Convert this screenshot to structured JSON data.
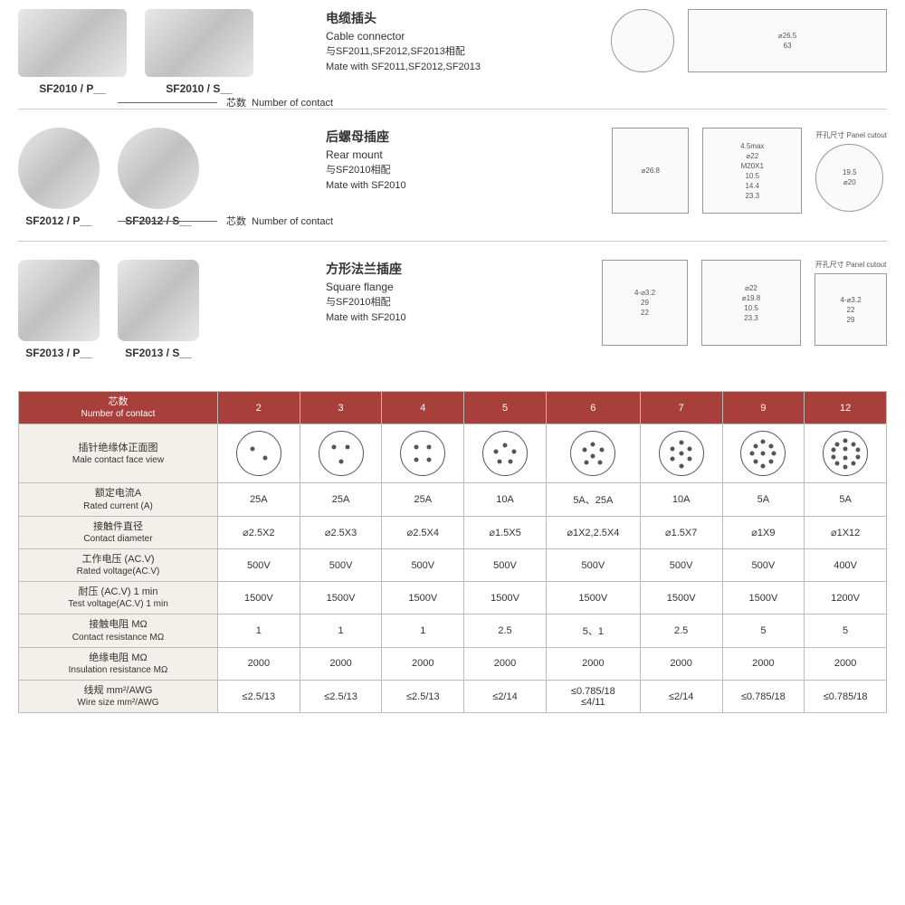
{
  "products": [
    {
      "partP": "SF2010 / P__",
      "partS": "SF2010 / S__",
      "cnTitle": "电缆插头",
      "enTitle": "Cable connector",
      "cnMate": "与SF2011,SF2012,SF2013相配",
      "enMate": "Mate with SF2011,SF2012,SF2013",
      "contactCn": "芯数",
      "contactEn": "Number of contact",
      "drawings": {
        "dim1": "⌀26.5",
        "dim2": "63"
      }
    },
    {
      "partP": "SF2012 / P__",
      "partS": "SF2012 / S__",
      "cnTitle": "后螺母插座",
      "enTitle": "Rear mount",
      "cnMate": "与SF2010相配",
      "enMate": "Mate with SF2010",
      "contactCn": "芯数",
      "contactEn": "Number of contact",
      "drawings": {
        "d1": "⌀26.8",
        "d2": "4.5max",
        "d3": "⌀22",
        "d4": "M20X1",
        "d5": "10.5",
        "d6": "14.4",
        "d7": "23.3",
        "cutoutCn": "开孔尺寸",
        "cutoutEn": "Panel cutout",
        "c1": "19.5",
        "c2": "⌀20"
      }
    },
    {
      "partP": "SF2013 / P__",
      "partS": "SF2013 / S__",
      "cnTitle": "方形法兰插座",
      "enTitle": "Square flange",
      "cnMate": "与SF2010相配",
      "enMate": "Mate with SF2010",
      "contactCn": "芯数",
      "contactEn": "Number of contact",
      "drawings": {
        "d1": "4-⌀3.2",
        "d2": "29",
        "d3": "22",
        "d4": "⌀22",
        "d5": "⌀19.8",
        "d6": "10.5",
        "d7": "23.3",
        "cutoutCn": "开孔尺寸",
        "cutoutEn": "Panel cutout",
        "c1": "4-⌀3.2",
        "c2": "22",
        "c3": "29"
      }
    }
  ],
  "table": {
    "headerLabelCn": "芯数",
    "headerLabelEn": "Number of contact",
    "columns": [
      "2",
      "3",
      "4",
      "5",
      "6",
      "7",
      "9",
      "12"
    ],
    "rows": [
      {
        "cn": "插针绝缘体正面图",
        "en": "Male contact face view",
        "type": "face"
      },
      {
        "cn": "额定电流A",
        "en": "Rated current (A)",
        "vals": [
          "25A",
          "25A",
          "25A",
          "10A",
          "5A、25A",
          "10A",
          "5A",
          "5A"
        ]
      },
      {
        "cn": "接触件直径",
        "en": "Contact diameter",
        "vals": [
          "⌀2.5X2",
          "⌀2.5X3",
          "⌀2.5X4",
          "⌀1.5X5",
          "⌀1X2,2.5X4",
          "⌀1.5X7",
          "⌀1X9",
          "⌀1X12"
        ]
      },
      {
        "cn": "工作电压 (AC.V)",
        "en": "Rated voltage(AC.V)",
        "vals": [
          "500V",
          "500V",
          "500V",
          "500V",
          "500V",
          "500V",
          "500V",
          "400V"
        ]
      },
      {
        "cn": "耐压 (AC.V) 1 min",
        "en": "Test voltage(AC.V) 1 min",
        "vals": [
          "1500V",
          "1500V",
          "1500V",
          "1500V",
          "1500V",
          "1500V",
          "1500V",
          "1200V"
        ]
      },
      {
        "cn": "接触电阻 MΩ",
        "en": "Contact resistance MΩ",
        "vals": [
          "1",
          "1",
          "1",
          "2.5",
          "5、1",
          "2.5",
          "5",
          "5"
        ]
      },
      {
        "cn": "绝缘电阻 MΩ",
        "en": "Insulation resistance MΩ",
        "vals": [
          "2000",
          "2000",
          "2000",
          "2000",
          "2000",
          "2000",
          "2000",
          "2000"
        ]
      },
      {
        "cn": "线规 mm²/AWG",
        "en": "Wire size mm²/AWG",
        "vals": [
          "≤2.5/13",
          "≤2.5/13",
          "≤2.5/13",
          "≤2/14",
          "≤0.785/18\n≤4/11",
          "≤2/14",
          "≤0.785/18",
          "≤0.785/18"
        ]
      }
    ],
    "pinLayouts": {
      "2": [
        [
          35,
          40
        ],
        [
          65,
          60
        ]
      ],
      "3": [
        [
          35,
          35
        ],
        [
          65,
          35
        ],
        [
          50,
          68
        ]
      ],
      "4": [
        [
          35,
          35
        ],
        [
          65,
          35
        ],
        [
          35,
          65
        ],
        [
          65,
          65
        ]
      ],
      "5": [
        [
          50,
          30
        ],
        [
          30,
          45
        ],
        [
          70,
          45
        ],
        [
          38,
          68
        ],
        [
          62,
          68
        ]
      ],
      "6": [
        [
          50,
          28
        ],
        [
          30,
          42
        ],
        [
          70,
          42
        ],
        [
          50,
          55
        ],
        [
          35,
          70
        ],
        [
          65,
          70
        ]
      ],
      "7": [
        [
          50,
          25
        ],
        [
          30,
          40
        ],
        [
          70,
          40
        ],
        [
          50,
          50
        ],
        [
          30,
          62
        ],
        [
          70,
          62
        ],
        [
          50,
          78
        ]
      ],
      "9": [
        [
          50,
          22
        ],
        [
          32,
          32
        ],
        [
          68,
          32
        ],
        [
          25,
          50
        ],
        [
          50,
          50
        ],
        [
          75,
          50
        ],
        [
          32,
          68
        ],
        [
          68,
          68
        ],
        [
          50,
          78
        ]
      ],
      "12": [
        [
          50,
          20
        ],
        [
          32,
          28
        ],
        [
          68,
          28
        ],
        [
          22,
          42
        ],
        [
          50,
          40
        ],
        [
          78,
          42
        ],
        [
          22,
          58
        ],
        [
          50,
          60
        ],
        [
          78,
          58
        ],
        [
          32,
          72
        ],
        [
          68,
          72
        ],
        [
          50,
          80
        ]
      ]
    }
  }
}
